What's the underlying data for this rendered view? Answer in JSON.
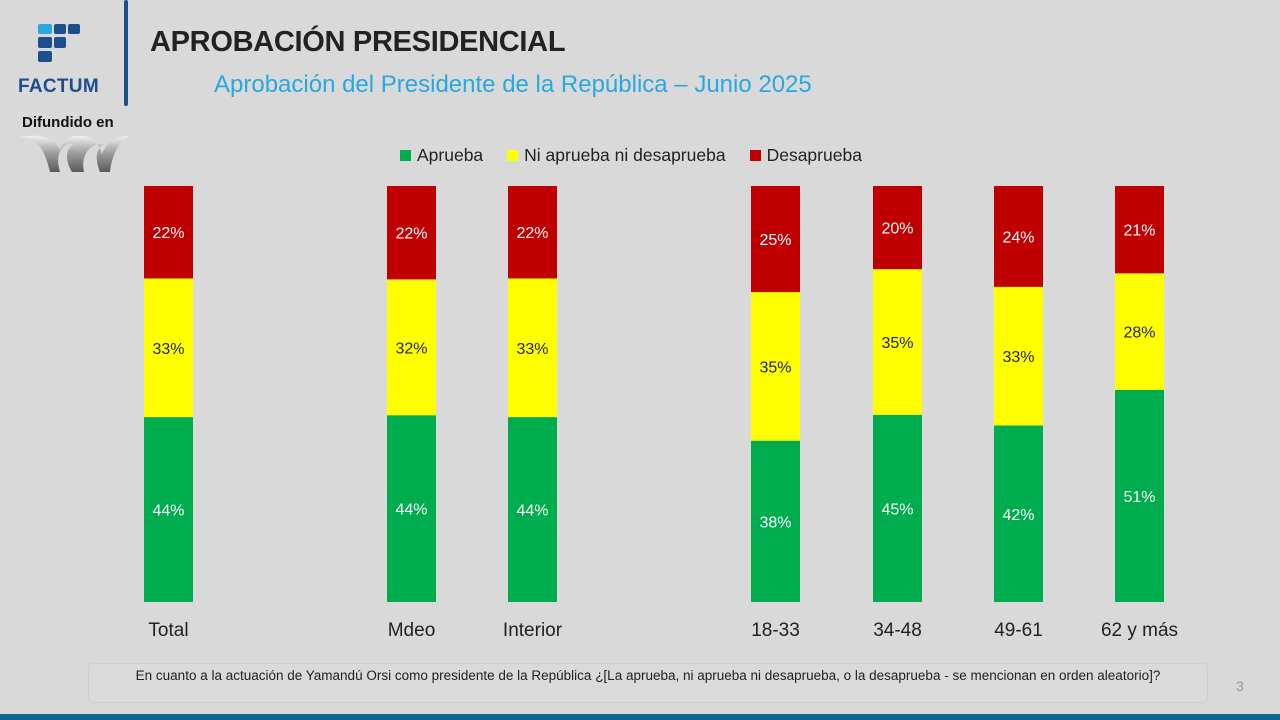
{
  "header": {
    "brand": "FACTUM",
    "diffused_label": "Difundido en",
    "title": "APROBACIÓN PRESIDENCIAL",
    "subtitle": "Aprobación del Presidente de la República – Junio 2025"
  },
  "colors": {
    "aprueba": "#00ad4e",
    "ni": "#ffff00",
    "desaprueba": "#c00000",
    "brand": "#1f4e8c",
    "subtitle": "#29a8e0",
    "footer": "#0e6690"
  },
  "chart_data": {
    "type": "bar",
    "stacked": true,
    "normalized": true,
    "title": "Aprobación del Presidente de la República – Junio 2025",
    "xlabel": "",
    "ylabel": "",
    "ylim": [
      0,
      100
    ],
    "grid": false,
    "legend_position": "top-center",
    "categories": [
      "Total",
      "Mdeo",
      "Interior",
      "18-33",
      "34-48",
      "49-61",
      "62 y más"
    ],
    "series": [
      {
        "name": "Aprueba",
        "color": "#00ad4e",
        "values": [
          44,
          44,
          44,
          38,
          45,
          42,
          51
        ]
      },
      {
        "name": "Ni aprueba ni desaprueba",
        "color": "#ffff00",
        "values": [
          33,
          32,
          33,
          35,
          35,
          33,
          28
        ]
      },
      {
        "name": "Desaprueba",
        "color": "#c00000",
        "values": [
          22,
          22,
          22,
          25,
          20,
          24,
          21
        ]
      }
    ],
    "data_label_format": "{v}%"
  },
  "footer": {
    "question": "En cuanto a la actuación de Yamandú Orsi como presidente de la República ¿[La aprueba, ni aprueba ni desaprueba, o la desaprueba - se mencionan en orden aleatorio]?",
    "page_number": "3"
  }
}
